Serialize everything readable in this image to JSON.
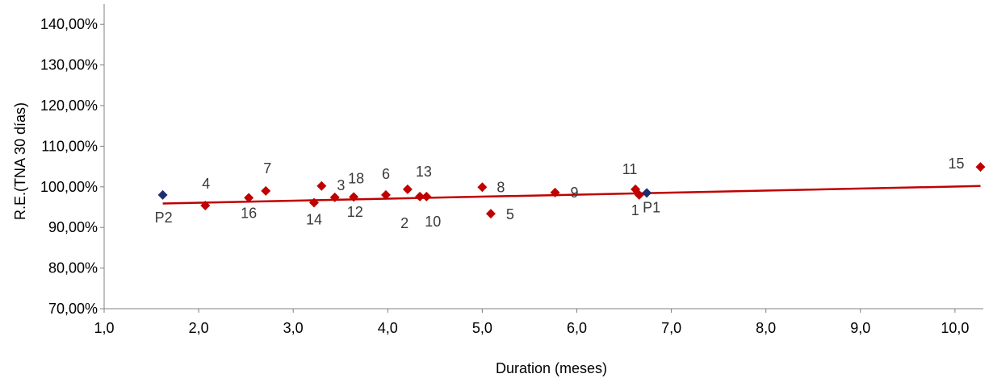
{
  "chart_data": {
    "type": "scatter",
    "xlabel": "Duration (meses)",
    "ylabel": "R.E.(TNA 30 días)",
    "xlim": [
      1.0,
      10.3
    ],
    "ylim": [
      70,
      145
    ],
    "x_ticks": [
      {
        "value": 1.0,
        "label": "1,0"
      },
      {
        "value": 2.0,
        "label": "2,0"
      },
      {
        "value": 3.0,
        "label": "3,0"
      },
      {
        "value": 4.0,
        "label": "4,0"
      },
      {
        "value": 5.0,
        "label": "5,0"
      },
      {
        "value": 6.0,
        "label": "6,0"
      },
      {
        "value": 7.0,
        "label": "7,0"
      },
      {
        "value": 8.0,
        "label": "8,0"
      },
      {
        "value": 9.0,
        "label": "9,0"
      },
      {
        "value": 10.0,
        "label": "10,0"
      }
    ],
    "y_ticks": [
      {
        "value": 70,
        "label": "70,00%"
      },
      {
        "value": 80,
        "label": "80,00%"
      },
      {
        "value": 90,
        "label": "90,00%"
      },
      {
        "value": 100,
        "label": "100,00%"
      },
      {
        "value": 110,
        "label": "110,00%"
      },
      {
        "value": 120,
        "label": "120,00%"
      },
      {
        "value": 130,
        "label": "130,00%"
      },
      {
        "value": 140,
        "label": "140,00%"
      }
    ],
    "grid": false,
    "colors": {
      "funds": "#c00000",
      "portfolios": "#1f2f6e",
      "trendline": "#c00000",
      "axis": "#808080"
    },
    "series": [
      {
        "points": [
          {
            "label": "4",
            "x": 2.07,
            "y": 95.4
          },
          {
            "label": "16",
            "x": 2.53,
            "y": 97.3
          },
          {
            "label": "7",
            "x": 2.71,
            "y": 99.0
          },
          {
            "label": "14",
            "x": 3.22,
            "y": 96.1
          },
          {
            "label": "3",
            "x": 3.3,
            "y": 100.2
          },
          {
            "label": "12",
            "x": 3.44,
            "y": 97.4
          },
          {
            "label": "18",
            "x": 3.64,
            "y": 97.5
          },
          {
            "label": "6",
            "x": 3.98,
            "y": 98.0
          },
          {
            "label": "13",
            "x": 4.21,
            "y": 99.4
          },
          {
            "label": "2",
            "x": 4.34,
            "y": 97.6
          },
          {
            "label": "10",
            "x": 4.41,
            "y": 97.6
          },
          {
            "label": "8",
            "x": 5.0,
            "y": 99.9
          },
          {
            "label": "5",
            "x": 5.09,
            "y": 93.4
          },
          {
            "label": "9",
            "x": 5.77,
            "y": 98.6
          },
          {
            "label": "11",
            "x": 6.62,
            "y": 99.4
          },
          {
            "label": "1",
            "x": 6.66,
            "y": 98.0
          },
          {
            "label": "15",
            "x": 10.27,
            "y": 104.9
          }
        ]
      },
      {
        "points": [
          {
            "label": "P2",
            "x": 1.62,
            "y": 98.0
          },
          {
            "label": "P1",
            "x": 6.74,
            "y": 98.5
          }
        ]
      }
    ],
    "trendline": {
      "x": [
        1.62,
        10.27
      ],
      "y": [
        95.9,
        100.2
      ]
    }
  }
}
